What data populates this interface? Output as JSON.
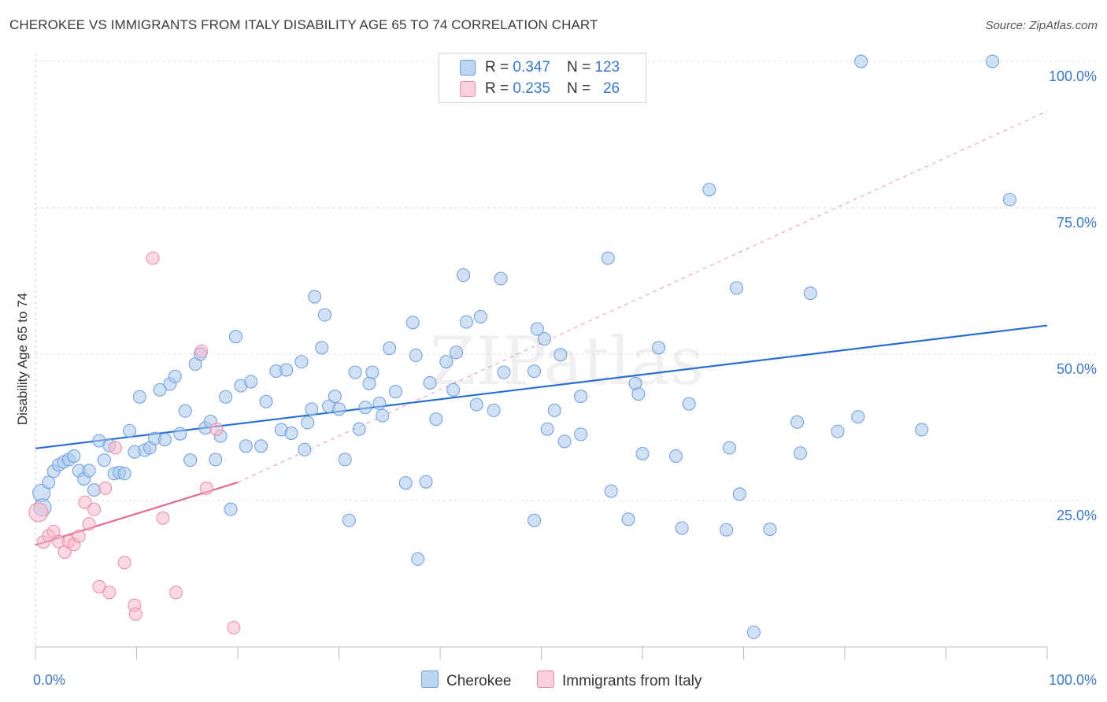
{
  "title": "CHEROKEE VS IMMIGRANTS FROM ITALY DISABILITY AGE 65 TO 74 CORRELATION CHART",
  "source": "Source: ZipAtlas.com",
  "watermark": "ZIPatlas",
  "legend": {
    "rows": [
      {
        "r_label": "R = ",
        "r_value": "0.347",
        "n_label": "N = ",
        "n_value": "123"
      },
      {
        "r_label": "R = ",
        "r_value": "0.235",
        "n_label": "N = ",
        "n_value": "26"
      }
    ]
  },
  "colors": {
    "cherokee_fill": "#a9c8ef",
    "cherokee_stroke": "#6b9ddb",
    "cherokee_line": "#2a6fcf",
    "italy_fill": "#f7b9cb",
    "italy_stroke": "#e98aa8",
    "italy_line": "#e06a94",
    "axis_label": "#3a78c9"
  },
  "chart_data": {
    "type": "scatter",
    "title": "CHEROKEE VS IMMIGRANTS FROM ITALY DISABILITY AGE 65 TO 74 CORRELATION CHART",
    "xlabel": "",
    "ylabel": "Disability Age 65 to 74",
    "xlim": [
      0,
      100
    ],
    "ylim": [
      0,
      100
    ],
    "x_tick_labels": [
      "0.0%",
      "100.0%"
    ],
    "y_tick_labels": [
      "25.0%",
      "50.0%",
      "75.0%",
      "100.0%"
    ],
    "y_ticks": [
      25,
      50,
      75,
      100
    ],
    "legend_position": "bottom-center",
    "series": [
      {
        "name": "Cherokee",
        "r": 0.347,
        "n": 123,
        "trend": {
          "x": [
            0,
            100
          ],
          "y": [
            33.9,
            54.9
          ]
        },
        "points": [
          [
            0.6,
            26.3
          ],
          [
            0.7,
            23.8
          ],
          [
            1.3,
            28.1
          ],
          [
            1.8,
            30.0
          ],
          [
            2.3,
            31.1
          ],
          [
            2.8,
            31.6
          ],
          [
            3.3,
            32.0
          ],
          [
            3.8,
            32.6
          ],
          [
            4.3,
            30.1
          ],
          [
            4.8,
            28.7
          ],
          [
            5.3,
            30.1
          ],
          [
            5.8,
            26.8
          ],
          [
            6.3,
            35.2
          ],
          [
            6.8,
            31.9
          ],
          [
            7.3,
            34.4
          ],
          [
            7.8,
            29.6
          ],
          [
            8.3,
            29.8
          ],
          [
            8.8,
            29.6
          ],
          [
            9.3,
            36.9
          ],
          [
            9.8,
            33.3
          ],
          [
            10.3,
            42.7
          ],
          [
            10.8,
            33.6
          ],
          [
            11.3,
            34.0
          ],
          [
            11.8,
            35.6
          ],
          [
            12.3,
            43.9
          ],
          [
            12.8,
            35.4
          ],
          [
            13.3,
            44.9
          ],
          [
            13.8,
            46.2
          ],
          [
            14.3,
            36.4
          ],
          [
            14.8,
            40.3
          ],
          [
            15.3,
            31.9
          ],
          [
            15.8,
            48.3
          ],
          [
            16.3,
            50.0
          ],
          [
            16.8,
            37.4
          ],
          [
            17.3,
            38.5
          ],
          [
            17.8,
            32.0
          ],
          [
            18.3,
            36.0
          ],
          [
            18.8,
            42.7
          ],
          [
            19.3,
            23.5
          ],
          [
            19.8,
            53.0
          ],
          [
            20.3,
            44.6
          ],
          [
            20.8,
            34.3
          ],
          [
            21.3,
            45.3
          ],
          [
            22.3,
            34.3
          ],
          [
            22.8,
            41.9
          ],
          [
            23.8,
            47.1
          ],
          [
            24.3,
            37.1
          ],
          [
            24.8,
            47.3
          ],
          [
            25.3,
            36.5
          ],
          [
            26.3,
            48.7
          ],
          [
            26.6,
            33.7
          ],
          [
            26.9,
            38.3
          ],
          [
            27.3,
            40.6
          ],
          [
            27.6,
            59.8
          ],
          [
            28.3,
            51.1
          ],
          [
            28.6,
            56.7
          ],
          [
            29.0,
            41.1
          ],
          [
            29.6,
            42.8
          ],
          [
            30.0,
            40.6
          ],
          [
            30.6,
            32.0
          ],
          [
            31.0,
            21.6
          ],
          [
            31.6,
            46.9
          ],
          [
            32.0,
            37.2
          ],
          [
            32.6,
            40.9
          ],
          [
            33.0,
            45.0
          ],
          [
            33.3,
            46.9
          ],
          [
            34.0,
            41.6
          ],
          [
            34.3,
            39.5
          ],
          [
            35.0,
            51.0
          ],
          [
            35.6,
            43.6
          ],
          [
            36.6,
            28.0
          ],
          [
            37.3,
            55.4
          ],
          [
            37.6,
            49.8
          ],
          [
            38.6,
            28.2
          ],
          [
            39.0,
            45.1
          ],
          [
            39.6,
            38.9
          ],
          [
            40.6,
            48.7
          ],
          [
            41.3,
            43.9
          ],
          [
            41.6,
            50.3
          ],
          [
            42.3,
            63.5
          ],
          [
            42.6,
            55.5
          ],
          [
            43.6,
            41.4
          ],
          [
            44.0,
            56.4
          ],
          [
            45.3,
            40.4
          ],
          [
            46.0,
            62.9
          ],
          [
            46.3,
            46.9
          ],
          [
            49.3,
            47.1
          ],
          [
            49.6,
            54.3
          ],
          [
            49.3,
            21.6
          ],
          [
            50.3,
            52.6
          ],
          [
            50.6,
            37.2
          ],
          [
            51.3,
            40.4
          ],
          [
            51.9,
            49.9
          ],
          [
            52.3,
            35.1
          ],
          [
            53.9,
            36.3
          ],
          [
            53.9,
            42.8
          ],
          [
            56.6,
            66.4
          ],
          [
            56.9,
            26.6
          ],
          [
            58.6,
            21.8
          ],
          [
            59.3,
            45.0
          ],
          [
            59.6,
            43.2
          ],
          [
            61.6,
            51.1
          ],
          [
            63.3,
            32.6
          ],
          [
            63.9,
            20.3
          ],
          [
            64.6,
            41.5
          ],
          [
            66.6,
            78.1
          ],
          [
            68.3,
            20.0
          ],
          [
            68.6,
            34.0
          ],
          [
            69.3,
            61.3
          ],
          [
            69.6,
            26.1
          ],
          [
            72.6,
            20.1
          ],
          [
            75.3,
            38.4
          ],
          [
            75.6,
            33.1
          ],
          [
            76.6,
            60.4
          ],
          [
            79.3,
            36.8
          ],
          [
            81.3,
            39.3
          ],
          [
            81.6,
            100.0
          ],
          [
            87.6,
            37.1
          ],
          [
            94.6,
            100.0
          ],
          [
            96.3,
            76.4
          ],
          [
            37.8,
            15.0
          ],
          [
            60.0,
            33.0
          ],
          [
            71.0,
            2.5
          ]
        ]
      },
      {
        "name": "Immigrants from Italy",
        "r": 0.235,
        "n": 26,
        "trend": {
          "x": [
            0,
            20.0
          ],
          "y": [
            17.4,
            28.1
          ]
        },
        "points": [
          [
            0.3,
            23.0
          ],
          [
            0.8,
            17.9
          ],
          [
            1.3,
            19.0
          ],
          [
            1.8,
            19.7
          ],
          [
            2.3,
            18.0
          ],
          [
            2.9,
            16.2
          ],
          [
            3.3,
            18.0
          ],
          [
            3.8,
            17.5
          ],
          [
            4.3,
            18.9
          ],
          [
            4.9,
            24.7
          ],
          [
            5.3,
            21.0
          ],
          [
            5.8,
            23.5
          ],
          [
            6.3,
            10.3
          ],
          [
            6.9,
            27.1
          ],
          [
            7.3,
            9.3
          ],
          [
            7.9,
            34.0
          ],
          [
            8.8,
            14.4
          ],
          [
            9.8,
            7.1
          ],
          [
            9.9,
            5.6
          ],
          [
            11.6,
            66.4
          ],
          [
            12.6,
            22.0
          ],
          [
            13.9,
            9.3
          ],
          [
            16.4,
            50.5
          ],
          [
            16.9,
            27.1
          ],
          [
            17.9,
            37.2
          ],
          [
            19.6,
            3.3
          ]
        ]
      }
    ]
  },
  "bottom_legend": {
    "items": [
      {
        "label": "Cherokee"
      },
      {
        "label": "Immigrants from Italy"
      }
    ]
  }
}
